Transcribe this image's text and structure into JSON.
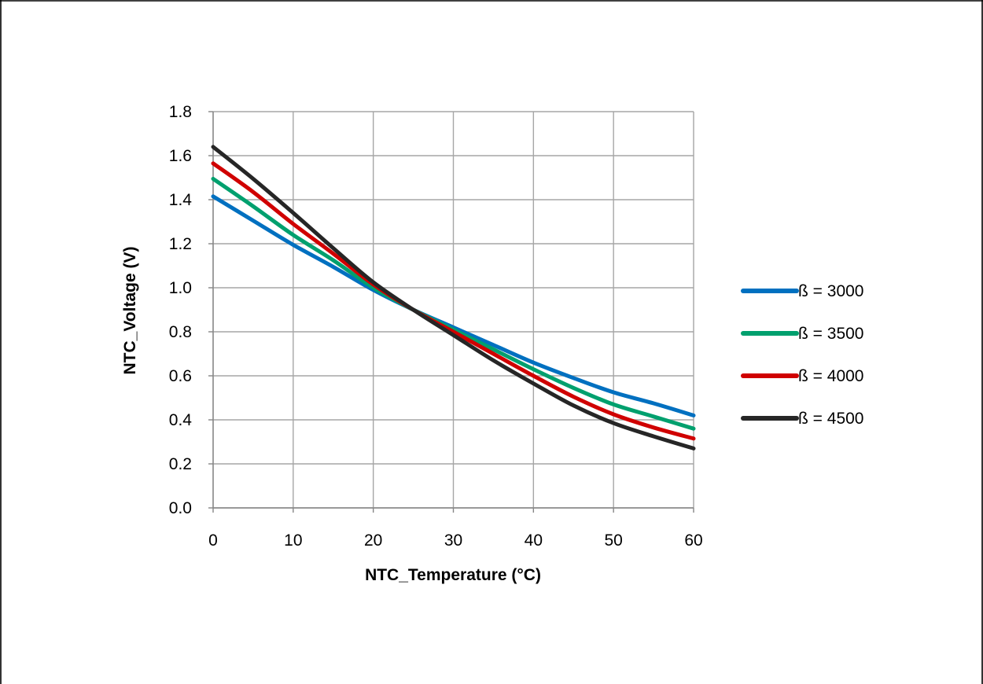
{
  "chart_data": {
    "type": "line",
    "title": "",
    "xlabel": "NTC_Temperature (°C)",
    "ylabel": "NTC_Voltage (V)",
    "xlim": [
      0,
      60
    ],
    "ylim": [
      0,
      1.8
    ],
    "x_ticks": [
      "0",
      "10",
      "20",
      "30",
      "40",
      "50",
      "60"
    ],
    "y_ticks": [
      "0.0",
      "0.2",
      "0.4",
      "0.6",
      "0.8",
      "1.0",
      "1.2",
      "1.4",
      "1.6",
      "1.8"
    ],
    "grid": true,
    "legend_position": "right",
    "x": [
      0,
      5,
      10,
      15,
      20,
      25,
      30,
      35,
      40,
      45,
      50,
      55,
      60
    ],
    "series": [
      {
        "name": "ß = 3000",
        "color": "#0070c0",
        "values": [
          1.415,
          1.305,
          1.195,
          1.095,
          0.99,
          0.9,
          0.82,
          0.74,
          0.66,
          0.59,
          0.525,
          0.475,
          0.42
        ]
      },
      {
        "name": "ß = 3500",
        "color": "#00a06e",
        "values": [
          1.495,
          1.37,
          1.24,
          1.125,
          1.0,
          0.9,
          0.81,
          0.72,
          0.63,
          0.545,
          0.47,
          0.415,
          0.36
        ]
      },
      {
        "name": "ß = 4000",
        "color": "#d00000",
        "values": [
          1.565,
          1.435,
          1.29,
          1.155,
          1.015,
          0.9,
          0.8,
          0.7,
          0.6,
          0.505,
          0.425,
          0.365,
          0.315
        ]
      },
      {
        "name": "ß = 4500",
        "color": "#262626",
        "values": [
          1.64,
          1.495,
          1.34,
          1.18,
          1.025,
          0.9,
          0.785,
          0.67,
          0.565,
          0.465,
          0.385,
          0.325,
          0.27
        ]
      }
    ]
  }
}
